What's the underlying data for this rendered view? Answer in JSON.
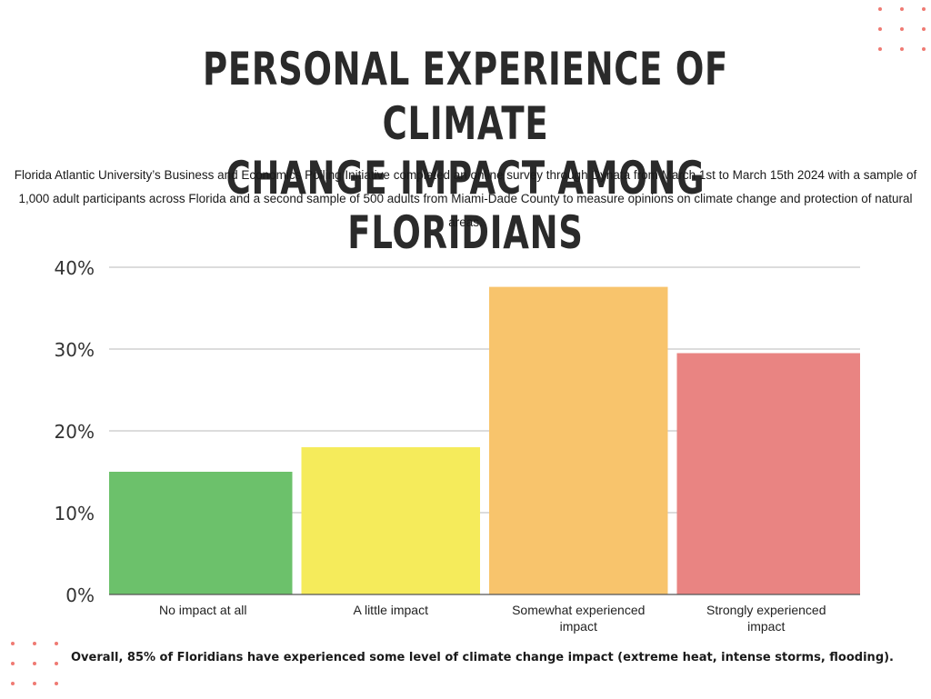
{
  "header": {
    "title_line1": "PERSONAL EXPERIENCE OF CLIMATE",
    "title_line2": "CHANGE IMPACT AMONG FLORIDIANS",
    "subtitle": "Florida Atlantic University’s Business and Economics Polling Initiative completed an online survey through Dynata from March 1st to March 15th 2024 with a sample of 1,000 adult participants across Florida and a second sample of 500 adults from Miami-Dade County to measure opinions on climate change and protection of natural areas."
  },
  "footer": {
    "note": "Overall, 85% of Floridians have experienced some level of climate change impact (extreme heat, intense storms, flooding)."
  },
  "colors": {
    "gridline": "#c8c8c8",
    "decor_dots": "#ef7a73"
  },
  "chart_data": {
    "type": "bar",
    "title": "PERSONAL EXPERIENCE OF CLIMATE CHANGE IMPACT AMONG FLORIDIANS",
    "categories": [
      [
        "No impact at all"
      ],
      [
        "A little impact"
      ],
      [
        "Somewhat experienced",
        "impact"
      ],
      [
        "Strongly experienced",
        "impact"
      ]
    ],
    "values": [
      15,
      18,
      37.6,
      29.5
    ],
    "colors": [
      "#6cc16b",
      "#f5eb5b",
      "#f8c46c",
      "#e98482"
    ],
    "ylim": [
      0,
      40
    ],
    "yticks": [
      0,
      10,
      20,
      30,
      40
    ],
    "ytick_labels": [
      "0%",
      "10%",
      "20%",
      "30%",
      "40%"
    ],
    "grid": true,
    "xlabel": "",
    "ylabel": ""
  }
}
